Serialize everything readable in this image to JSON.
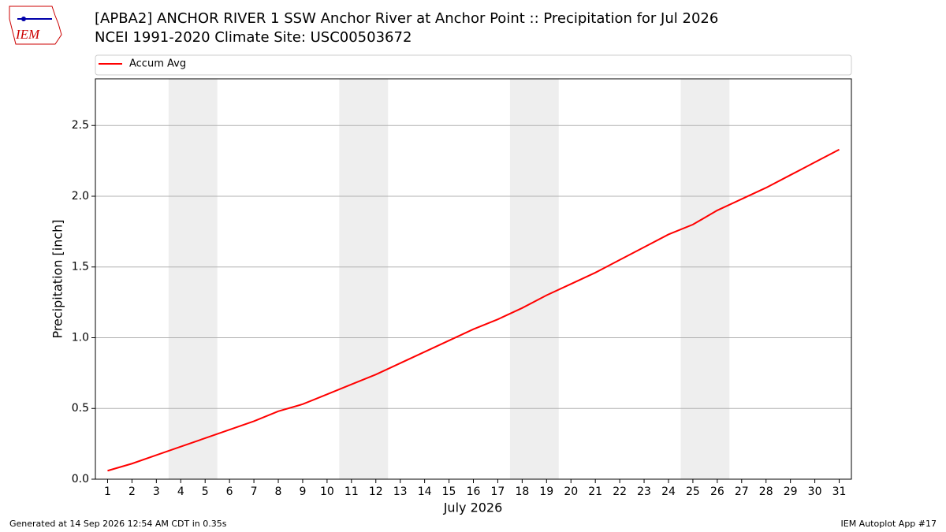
{
  "logo_text": "IEM",
  "footer": {
    "left": "Generated at 14 Sep 2026 12:54 AM CDT in 0.35s",
    "right": "IEM Autoplot App #17"
  },
  "chart_data": {
    "type": "line",
    "title": "[APBA2] ANCHOR RIVER 1 SSW Anchor River at Anchor Point :: Precipitation for Jul 2026",
    "subtitle": "NCEI 1991-2020 Climate Site: USC00503672",
    "x_label": "July 2026",
    "y_label": "Precipitation [inch]",
    "x": [
      1,
      2,
      3,
      4,
      5,
      6,
      7,
      8,
      9,
      10,
      11,
      12,
      13,
      14,
      15,
      16,
      17,
      18,
      19,
      20,
      21,
      22,
      23,
      24,
      25,
      26,
      27,
      28,
      29,
      30,
      31
    ],
    "series": [
      {
        "name": "Accum Avg",
        "color": "#ff0000",
        "values": [
          0.06,
          0.11,
          0.17,
          0.23,
          0.29,
          0.35,
          0.41,
          0.48,
          0.53,
          0.6,
          0.67,
          0.74,
          0.82,
          0.9,
          0.98,
          1.06,
          1.13,
          1.21,
          1.3,
          1.38,
          1.46,
          1.55,
          1.64,
          1.73,
          1.8,
          1.9,
          1.98,
          2.06,
          2.15,
          2.24,
          2.33
        ]
      }
    ],
    "xlim": [
      0.5,
      31.5
    ],
    "xticks": [
      1,
      2,
      3,
      4,
      5,
      6,
      7,
      8,
      9,
      10,
      11,
      12,
      13,
      14,
      15,
      16,
      17,
      18,
      19,
      20,
      21,
      22,
      23,
      24,
      25,
      26,
      27,
      28,
      29,
      30,
      31
    ],
    "ylim": [
      0,
      2.83
    ],
    "yticks": [
      {
        "value": 0,
        "label": "0.0"
      },
      0.5,
      {
        "value": 1,
        "label": "1.0"
      },
      1.5,
      {
        "value": 2,
        "label": "2.0"
      },
      2.5
    ],
    "weekend_bands": [
      [
        3.5,
        5.5
      ],
      [
        10.5,
        12.5
      ],
      [
        17.5,
        19.5
      ],
      [
        24.5,
        26.5
      ]
    ],
    "band_color": "#eeeeee",
    "grid": "y",
    "legend": "top"
  }
}
